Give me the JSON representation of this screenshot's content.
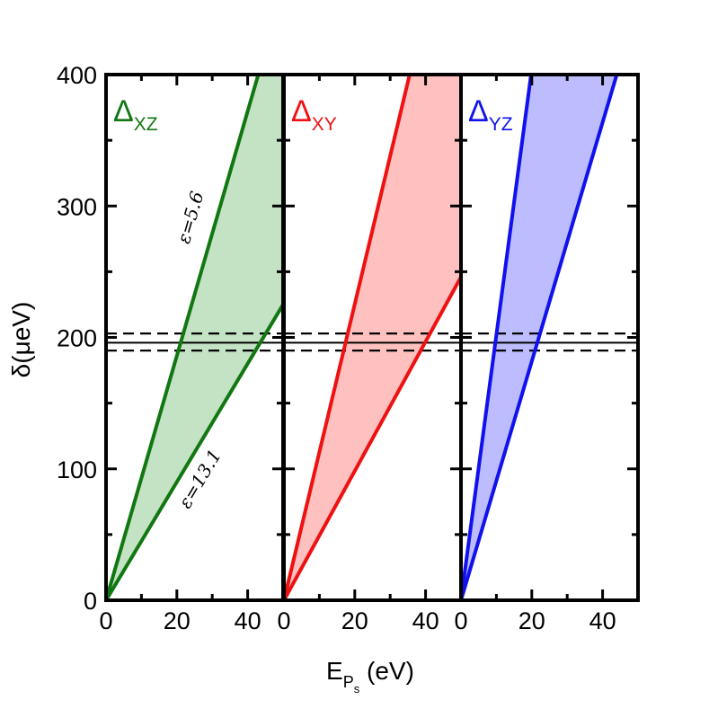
{
  "chart_data": {
    "type": "area",
    "ylabel": "δ(μeV)",
    "xlabel_main": "E",
    "xlabel_sub1": "P",
    "xlabel_sub2": "s",
    "xlabel_unit": " (eV)",
    "ylim": [
      0,
      400
    ],
    "yticks": [
      0,
      100,
      200,
      300,
      400
    ],
    "y_minor_ticks": [
      50,
      150,
      250,
      350
    ],
    "xticks": [
      0,
      20,
      40
    ],
    "x_minor_ticks": [
      10,
      30
    ],
    "xlim": [
      0,
      50
    ],
    "hlines": {
      "solid": 196,
      "dashed": [
        190,
        203
      ]
    },
    "panels": [
      {
        "label_main": "Δ",
        "label_sub": "XZ",
        "color": "#117711",
        "fill": "#c4e2c4",
        "upper_line": {
          "x": [
            0,
            43
          ],
          "y": [
            0,
            400
          ]
        },
        "lower_line": {
          "x": [
            0,
            50
          ],
          "y": [
            0,
            225
          ]
        },
        "annotations": [
          {
            "text": "ε=5.6",
            "x": 25.5,
            "y": 290
          },
          {
            "text": "ε=13.1",
            "x": 28,
            "y": 90
          }
        ]
      },
      {
        "label_main": "Δ",
        "label_sub": "XY",
        "color": "#ee1111",
        "fill": "#ffc0c0",
        "upper_line": {
          "x": [
            0,
            35.5
          ],
          "y": [
            0,
            400
          ]
        },
        "lower_line": {
          "x": [
            0,
            50
          ],
          "y": [
            0,
            246
          ]
        },
        "annotations": []
      },
      {
        "label_main": "Δ",
        "label_sub": "YZ",
        "color": "#1111ee",
        "fill": "#bcbcff",
        "upper_line": {
          "x": [
            0,
            19.8
          ],
          "y": [
            0,
            400
          ]
        },
        "lower_line": {
          "x": [
            0,
            44
          ],
          "y": [
            0,
            400
          ]
        },
        "annotations": []
      }
    ]
  }
}
